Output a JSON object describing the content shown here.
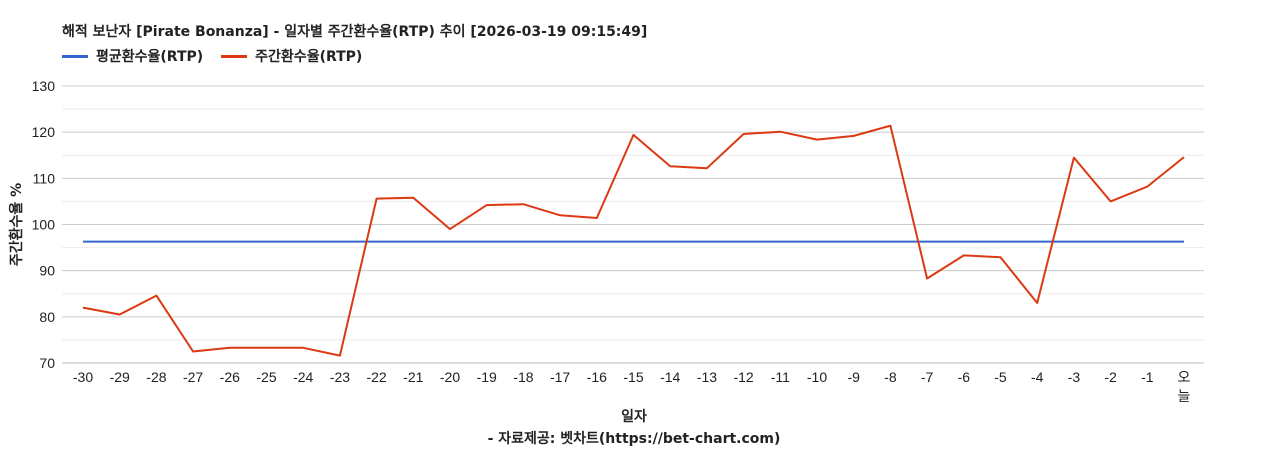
{
  "title": "해적 보난자 [Pirate Bonanza] - 일자별 주간환수율(RTP) 추이 [2026-03-19 09:15:49]",
  "legend": [
    {
      "label": "평균환수율(RTP)",
      "color": "#3366cc"
    },
    {
      "label": "주간환수율(RTP)",
      "color": "#dc3912"
    }
  ],
  "xlabel": "일자",
  "ylabel": "주간환수율 %",
  "credit": "- 자료제공: 벳차트(https://bet-chart.com)",
  "chart_data": {
    "type": "line",
    "title": "해적 보난자 [Pirate Bonanza] - 일자별 주간환수율(RTP) 추이 [2026-03-19 09:15:49]",
    "xlabel": "일자",
    "ylabel": "주간환수율 %",
    "ylim": [
      70,
      130
    ],
    "yticks": [
      70,
      80,
      90,
      100,
      110,
      120,
      130
    ],
    "grid": true,
    "legend_position": "top-left",
    "categories": [
      "-30",
      "-29",
      "-28",
      "-27",
      "-26",
      "-25",
      "-24",
      "-23",
      "-22",
      "-21",
      "-20",
      "-19",
      "-18",
      "-17",
      "-16",
      "-15",
      "-14",
      "-13",
      "-12",
      "-11",
      "-10",
      "-9",
      "-8",
      "-7",
      "-6",
      "-5",
      "-4",
      "-3",
      "-2",
      "-1",
      "오늘"
    ],
    "series": [
      {
        "name": "평균환수율(RTP)",
        "color": "#3366cc",
        "values": [
          96.3,
          96.3,
          96.3,
          96.3,
          96.3,
          96.3,
          96.3,
          96.3,
          96.3,
          96.3,
          96.3,
          96.3,
          96.3,
          96.3,
          96.3,
          96.3,
          96.3,
          96.3,
          96.3,
          96.3,
          96.3,
          96.3,
          96.3,
          96.3,
          96.3,
          96.3,
          96.3,
          96.3,
          96.3,
          96.3,
          96.3
        ]
      },
      {
        "name": "주간환수율(RTP)",
        "color": "#dc3912",
        "values": [
          82.0,
          80.5,
          84.6,
          72.5,
          73.3,
          73.3,
          73.3,
          71.6,
          105.6,
          105.8,
          99.0,
          104.2,
          104.4,
          102.0,
          101.4,
          119.4,
          112.6,
          112.2,
          119.6,
          120.1,
          118.4,
          119.2,
          121.4,
          88.3,
          93.3,
          92.9,
          83.0,
          114.5,
          105.0,
          108.2,
          114.6
        ]
      }
    ]
  }
}
